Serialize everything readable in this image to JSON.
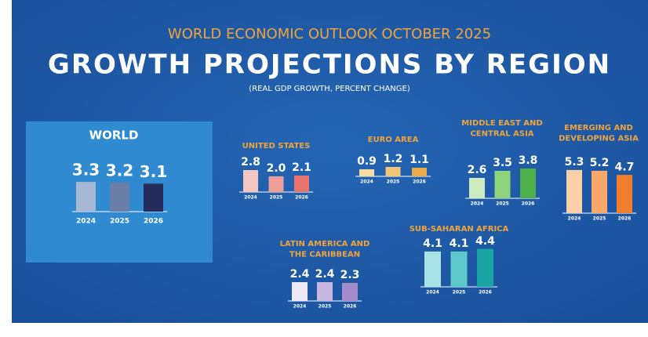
{
  "header": {
    "kicker": "WORLD ECONOMIC OUTLOOK OCTOBER 2025",
    "title": "GROWTH PROJECTIONS BY REGION",
    "subtitle": "(REAL GDP GROWTH, PERCENT CHANGE)"
  },
  "chart_data": [
    {
      "type": "bar",
      "title": [
        "WORLD"
      ],
      "categories": [
        "2024",
        "2025",
        "2026"
      ],
      "values": [
        3.3,
        3.2,
        3.1
      ],
      "value_labels": [
        "3.3",
        "3.2",
        "3.1"
      ],
      "colors": [
        "#a7b8d4",
        "#6a7ea8",
        "#242a5a"
      ]
    },
    {
      "type": "bar",
      "title": [
        "UNITED STATES"
      ],
      "categories": [
        "2024",
        "2025",
        "2026"
      ],
      "values": [
        2.8,
        2.0,
        2.1
      ],
      "value_labels": [
        "2.8",
        "2.0",
        "2.1"
      ],
      "colors": [
        "#f4c6c4",
        "#ee9f9c",
        "#e8726c"
      ]
    },
    {
      "type": "bar",
      "title": [
        "EURO AREA"
      ],
      "categories": [
        "2024",
        "2025",
        "2026"
      ],
      "values": [
        0.9,
        1.2,
        1.1
      ],
      "value_labels": [
        "0.9",
        "1.2",
        "1.1"
      ],
      "colors": [
        "#f7dca2",
        "#f2c677",
        "#eaa94b"
      ]
    },
    {
      "type": "bar",
      "title": [
        "MIDDLE EAST AND",
        "CENTRAL ASIA"
      ],
      "categories": [
        "2024",
        "2025",
        "2026"
      ],
      "values": [
        2.6,
        3.5,
        3.8
      ],
      "value_labels": [
        "2.6",
        "3.5",
        "3.8"
      ],
      "colors": [
        "#cdebc0",
        "#8fd37d",
        "#4db04a"
      ]
    },
    {
      "type": "bar",
      "title": [
        "EMERGING AND",
        "DEVELOPING ASIA"
      ],
      "categories": [
        "2024",
        "2025",
        "2026"
      ],
      "values": [
        5.3,
        5.2,
        4.7
      ],
      "value_labels": [
        "5.3",
        "5.2",
        "4.7"
      ],
      "colors": [
        "#fcd0ab",
        "#f8a86a",
        "#f07e2d"
      ]
    },
    {
      "type": "bar",
      "title": [
        "SUB-SAHARAN AFRICA"
      ],
      "categories": [
        "2024",
        "2025",
        "2026"
      ],
      "values": [
        4.1,
        4.1,
        4.4
      ],
      "value_labels": [
        "4.1",
        "4.1",
        "4.4"
      ],
      "colors": [
        "#a8e2e4",
        "#5ccacd",
        "#1aa5a5"
      ]
    },
    {
      "type": "bar",
      "title": [
        "LATIN AMERICA AND",
        "THE CARIBBEAN"
      ],
      "categories": [
        "2024",
        "2025",
        "2026"
      ],
      "values": [
        2.4,
        2.4,
        2.3
      ],
      "value_labels": [
        "2.4",
        "2.4",
        "2.3"
      ],
      "colors": [
        "#ede8f5",
        "#c7b7e0",
        "#a48bc9"
      ]
    }
  ]
}
